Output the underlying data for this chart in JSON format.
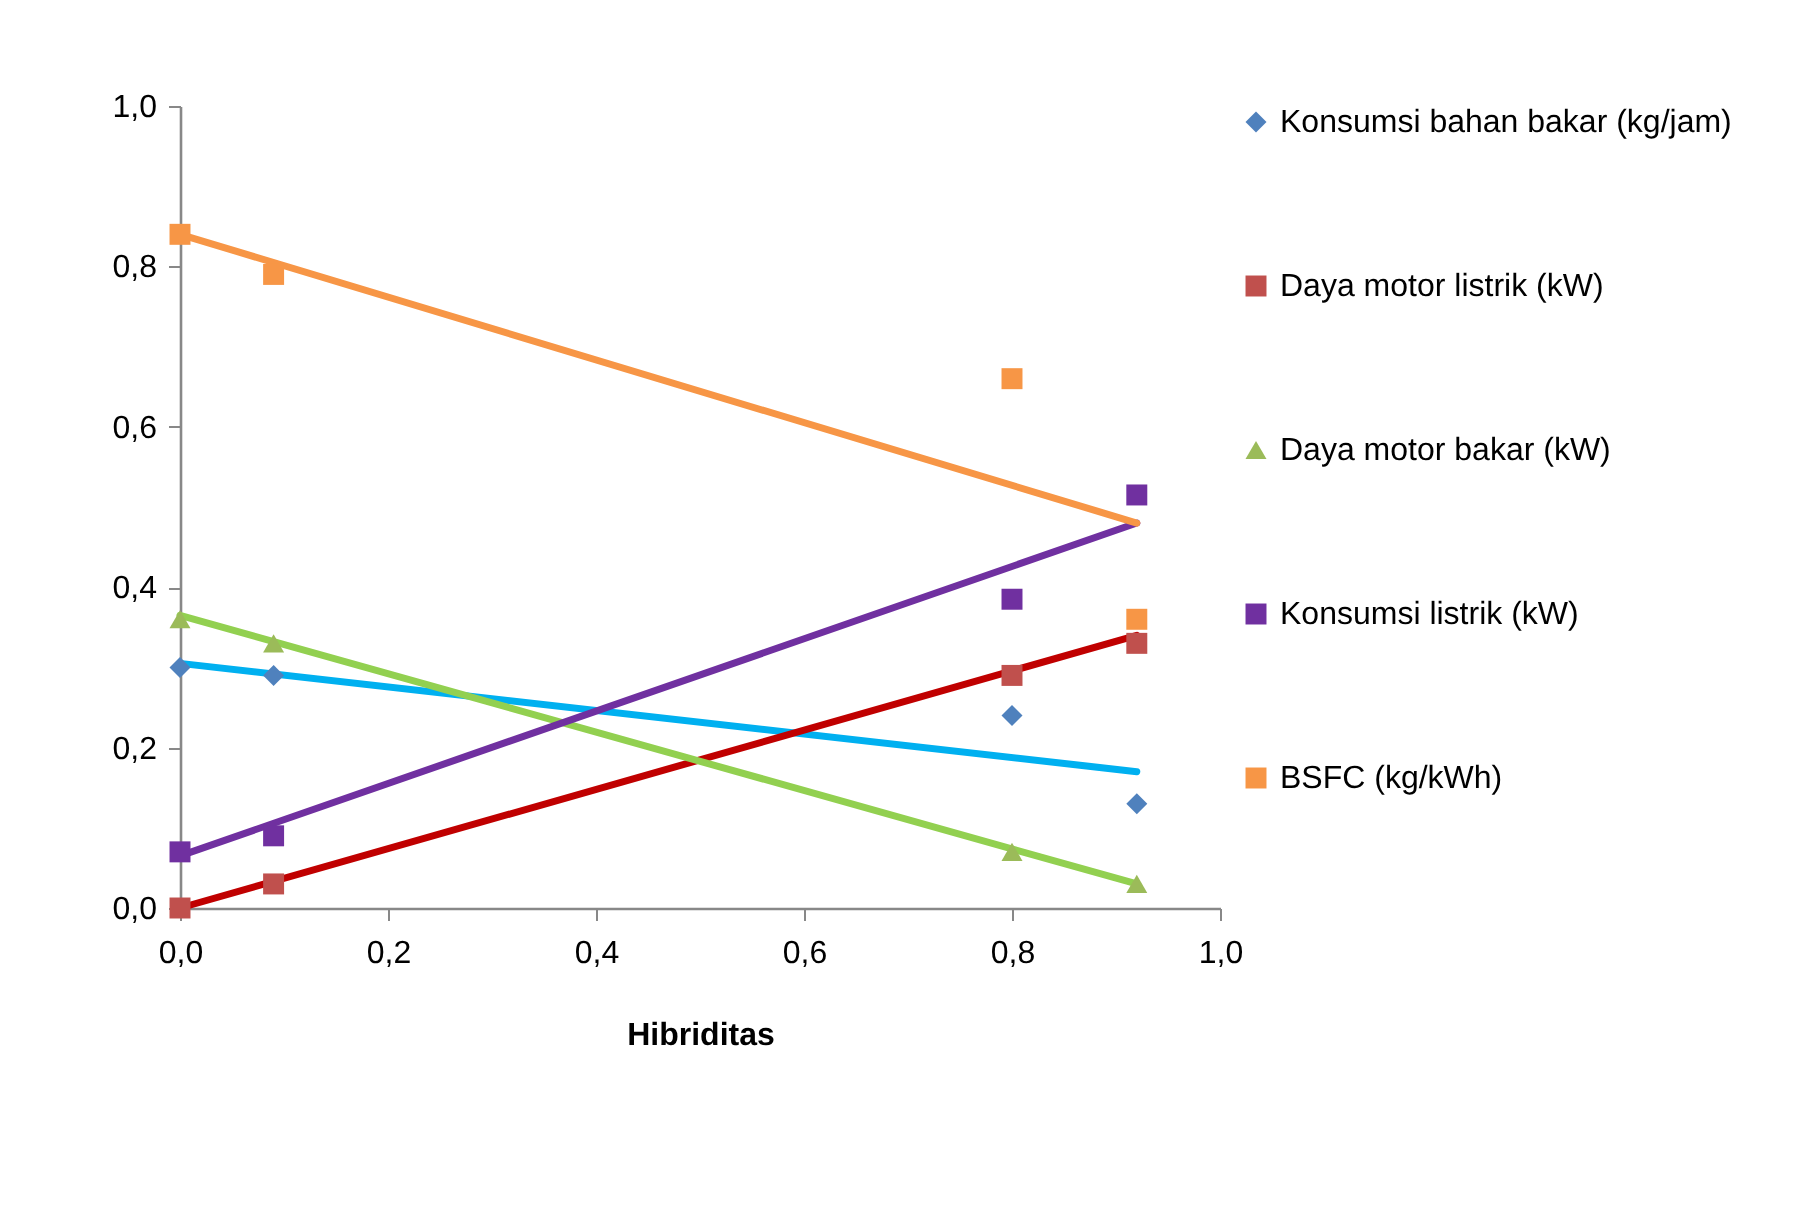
{
  "chart_data": {
    "type": "scatter",
    "xlabel": "Hibriditas",
    "xlim": [
      0,
      1
    ],
    "ylim": [
      0,
      1
    ],
    "xticks": [
      {
        "value": 0,
        "label": "0,0"
      },
      {
        "value": 0.2,
        "label": "0,2"
      },
      {
        "value": 0.4,
        "label": "0,4"
      },
      {
        "value": 0.6,
        "label": "0,6"
      },
      {
        "value": 0.8,
        "label": "0,8"
      },
      {
        "value": 1,
        "label": "1,0"
      }
    ],
    "yticks": [
      {
        "value": 0,
        "label": "0,0"
      },
      {
        "value": 0.2,
        "label": "0,2"
      },
      {
        "value": 0.4,
        "label": "0,4"
      },
      {
        "value": 0.6,
        "label": "0,6"
      },
      {
        "value": 0.8,
        "label": "0,8"
      },
      {
        "value": 1,
        "label": "1,0"
      }
    ],
    "grid": false,
    "legend": "right",
    "series": [
      {
        "name": "Konsumsi bahan bakar (kg/jam)",
        "marker": "diamond",
        "color": "#4f81bd",
        "x": [
          0,
          0.09,
          0.8,
          0.92
        ],
        "values": [
          0.3,
          0.29,
          0.24,
          0.13
        ]
      },
      {
        "name": "Daya motor listrik (kW)",
        "marker": "square",
        "color": "#c0504d",
        "x": [
          0,
          0.09,
          0.8,
          0.92
        ],
        "values": [
          0.0,
          0.03,
          0.29,
          0.33
        ]
      },
      {
        "name": "Daya motor bakar (kW)",
        "marker": "triangle",
        "color": "#9bbb59",
        "x": [
          0,
          0.09,
          0.8,
          0.92
        ],
        "values": [
          0.36,
          0.33,
          0.07,
          0.03
        ]
      },
      {
        "name": "Konsumsi listrik (kW)",
        "marker": "square",
        "color": "#7030a0",
        "x": [
          0,
          0.09,
          0.8,
          0.92
        ],
        "values": [
          0.07,
          0.09,
          0.385,
          0.515
        ]
      },
      {
        "name": "BSFC (kg/kWh)",
        "marker": "square",
        "color": "#f79646",
        "x": [
          0,
          0.09,
          0.8,
          0.92
        ],
        "values": [
          0.84,
          0.79,
          0.66,
          0.36
        ]
      },
      {
        "type": "line",
        "color": "#00b0f0",
        "x": [
          0,
          0.92
        ],
        "values": [
          0.305,
          0.17
        ]
      },
      {
        "type": "line",
        "color": "#c00000",
        "x": [
          0,
          0.92
        ],
        "values": [
          0.0,
          0.34
        ]
      },
      {
        "type": "line",
        "color": "#92d050",
        "x": [
          0,
          0.92
        ],
        "values": [
          0.365,
          0.03
        ]
      },
      {
        "type": "line",
        "color": "#7030a0",
        "x": [
          0,
          0.92
        ],
        "values": [
          0.065,
          0.48
        ]
      },
      {
        "type": "line",
        "color": "#f79646",
        "x": [
          0,
          0.92
        ],
        "values": [
          0.84,
          0.48
        ]
      }
    ]
  }
}
